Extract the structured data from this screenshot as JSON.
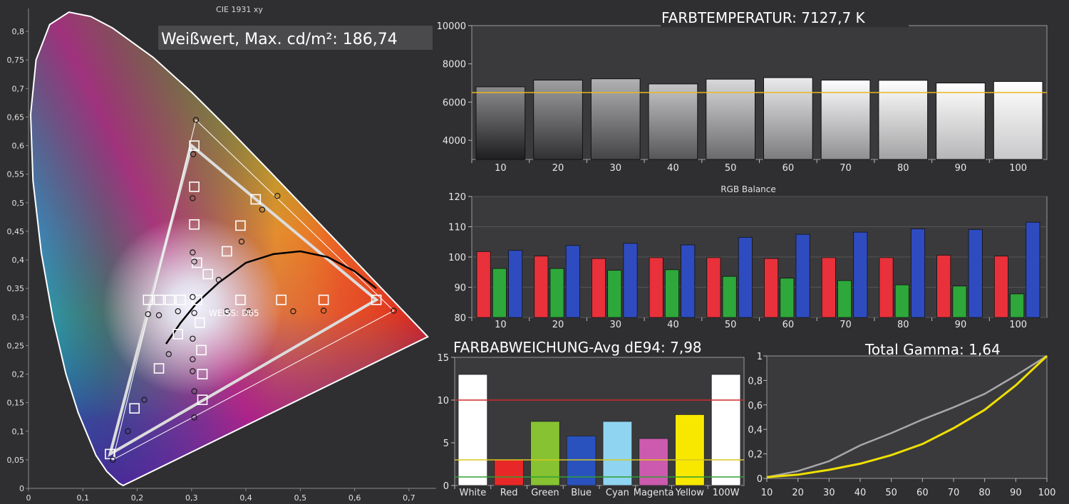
{
  "cie": {
    "title": "CIE 1931 xy",
    "white_value": "Weißwert, Max. cd/m²: 186,74",
    "white_point_label": "WEISS: D65"
  },
  "colortemp": {
    "title": "FARBTEMPERATUR: 7127,7 K"
  },
  "rgb": {
    "title": "RGB Balance"
  },
  "deltae": {
    "title": "FARBABWEICHUNG-Avg dE94: 7,98"
  },
  "gamma": {
    "title": "Total Gamma: 1,64"
  },
  "chart_data": [
    {
      "id": "cie",
      "type": "scatter",
      "title": "CIE 1931 xy",
      "xlim": [
        0,
        0.75
      ],
      "ylim": [
        0,
        0.84
      ],
      "xticks": [
        "0",
        "0,1",
        "0,2",
        "0,3",
        "0,4",
        "0,5",
        "0,6",
        "0,7"
      ],
      "yticks": [
        "0",
        "0,05",
        "0,1",
        "0,15",
        "0,2",
        "0,25",
        "0,3",
        "0,35",
        "0,4",
        "0,45",
        "0,5",
        "0,55",
        "0,6",
        "0,65",
        "0,7",
        "0,75",
        "0,8"
      ],
      "reference_gamut": [
        [
          0.64,
          0.33
        ],
        [
          0.3,
          0.6
        ],
        [
          0.15,
          0.06
        ]
      ],
      "measured_gamut": [
        [
          0.672,
          0.311
        ],
        [
          0.308,
          0.645
        ],
        [
          0.155,
          0.05
        ]
      ],
      "target_points": [
        [
          0.15,
          0.06
        ],
        [
          0.195,
          0.14
        ],
        [
          0.24,
          0.21
        ],
        [
          0.275,
          0.27
        ],
        [
          0.31,
          0.33
        ],
        [
          0.33,
          0.375
        ],
        [
          0.365,
          0.415
        ],
        [
          0.39,
          0.46
        ],
        [
          0.418,
          0.506
        ],
        [
          0.305,
          0.6
        ],
        [
          0.305,
          0.528
        ],
        [
          0.305,
          0.462
        ],
        [
          0.31,
          0.395
        ],
        [
          0.32,
          0.155
        ],
        [
          0.32,
          0.2
        ],
        [
          0.318,
          0.242
        ],
        [
          0.315,
          0.29
        ],
        [
          0.22,
          0.33
        ],
        [
          0.24,
          0.33
        ],
        [
          0.26,
          0.33
        ],
        [
          0.28,
          0.33
        ],
        [
          0.39,
          0.33
        ],
        [
          0.465,
          0.33
        ],
        [
          0.543,
          0.33
        ],
        [
          0.64,
          0.33
        ]
      ],
      "measured_points": [
        [
          0.155,
          0.05
        ],
        [
          0.183,
          0.1
        ],
        [
          0.213,
          0.155
        ],
        [
          0.258,
          0.235
        ],
        [
          0.308,
          0.645
        ],
        [
          0.303,
          0.585
        ],
        [
          0.302,
          0.508
        ],
        [
          0.302,
          0.413
        ],
        [
          0.305,
          0.397
        ],
        [
          0.302,
          0.335
        ],
        [
          0.305,
          0.307
        ],
        [
          0.302,
          0.262
        ],
        [
          0.302,
          0.226
        ],
        [
          0.302,
          0.205
        ],
        [
          0.305,
          0.17
        ],
        [
          0.305,
          0.124
        ],
        [
          0.22,
          0.305
        ],
        [
          0.24,
          0.303
        ],
        [
          0.275,
          0.31
        ],
        [
          0.35,
          0.365
        ],
        [
          0.392,
          0.432
        ],
        [
          0.43,
          0.488
        ],
        [
          0.458,
          0.512
        ],
        [
          0.365,
          0.31
        ],
        [
          0.405,
          0.31
        ],
        [
          0.487,
          0.31
        ],
        [
          0.543,
          0.311
        ],
        [
          0.672,
          0.311
        ]
      ],
      "planckian_locus": [
        [
          0.253,
          0.253
        ],
        [
          0.28,
          0.29
        ],
        [
          0.31,
          0.325
        ],
        [
          0.35,
          0.36
        ],
        [
          0.4,
          0.395
        ],
        [
          0.45,
          0.41
        ],
        [
          0.5,
          0.415
        ],
        [
          0.55,
          0.405
        ],
        [
          0.6,
          0.38
        ],
        [
          0.64,
          0.35
        ]
      ]
    },
    {
      "id": "colortemp",
      "type": "bar",
      "categories": [
        "10",
        "20",
        "30",
        "40",
        "50",
        "60",
        "70",
        "80",
        "90",
        "100"
      ],
      "values": [
        6800,
        7150,
        7220,
        6950,
        7200,
        7280,
        7150,
        7140,
        7000,
        7080
      ],
      "reference": 6500,
      "ylim": [
        3000,
        10000
      ],
      "yticks": [
        "4000",
        "6000",
        "8000",
        "10000"
      ]
    },
    {
      "id": "rgb",
      "type": "bar",
      "title": "RGB Balance",
      "categories": [
        "10",
        "20",
        "30",
        "40",
        "50",
        "60",
        "70",
        "80",
        "90",
        "100"
      ],
      "ylim": [
        80,
        120
      ],
      "yticks": [
        "80",
        "90",
        "100",
        "110",
        "120"
      ],
      "series": [
        {
          "color": "#e8313a",
          "values": [
            101.8,
            100.3,
            99.5,
            99.8,
            99.8,
            99.5,
            99.8,
            99.8,
            100.6,
            100.3
          ]
        },
        {
          "color": "#2ea83a",
          "values": [
            96.2,
            96.2,
            95.6,
            95.8,
            93.6,
            93.0,
            92.2,
            90.8,
            90.4,
            87.8
          ]
        },
        {
          "color": "#2e4cc0",
          "values": [
            102.2,
            103.8,
            104.5,
            104.0,
            106.5,
            107.5,
            108.2,
            109.3,
            109.1,
            111.5
          ]
        }
      ]
    },
    {
      "id": "deltae",
      "type": "bar",
      "categories": [
        "White",
        "Red",
        "Green",
        "Blue",
        "Cyan",
        "Magenta",
        "Yellow",
        "100W"
      ],
      "values": [
        13,
        3,
        7.5,
        5.8,
        7.5,
        5.5,
        8.3,
        13
      ],
      "colors": [
        "#ffffff",
        "#e82828",
        "#86c232",
        "#2a52be",
        "#8fd4f0",
        "#cc5aae",
        "#f8e800",
        "#ffffff"
      ],
      "ylim": [
        0,
        15
      ],
      "yticks": [
        "0",
        "5",
        "10",
        "15"
      ],
      "reference_lines": [
        {
          "value": 10,
          "color": "#d02a2a"
        },
        {
          "value": 3,
          "color": "#d8c820"
        },
        {
          "value": 1,
          "color": "#30a030"
        }
      ]
    },
    {
      "id": "gamma",
      "type": "line",
      "x": [
        10,
        20,
        30,
        40,
        50,
        60,
        70,
        80,
        90,
        100
      ],
      "xlim": [
        10,
        100
      ],
      "ylim": [
        0,
        1
      ],
      "yticks": [
        "0",
        "0,2",
        "0,4",
        "0,6",
        "0,8",
        "1"
      ],
      "xticks": [
        "10",
        "20",
        "30",
        "40",
        "50",
        "60",
        "70",
        "80",
        "90",
        "100"
      ],
      "series": [
        {
          "color": "#a8a8a8",
          "values": [
            0.01,
            0.06,
            0.14,
            0.27,
            0.37,
            0.48,
            0.58,
            0.69,
            0.84,
            1.0
          ]
        },
        {
          "color": "#f0e000",
          "values": [
            0.01,
            0.03,
            0.07,
            0.12,
            0.19,
            0.28,
            0.41,
            0.56,
            0.76,
            1.0
          ]
        }
      ]
    }
  ]
}
